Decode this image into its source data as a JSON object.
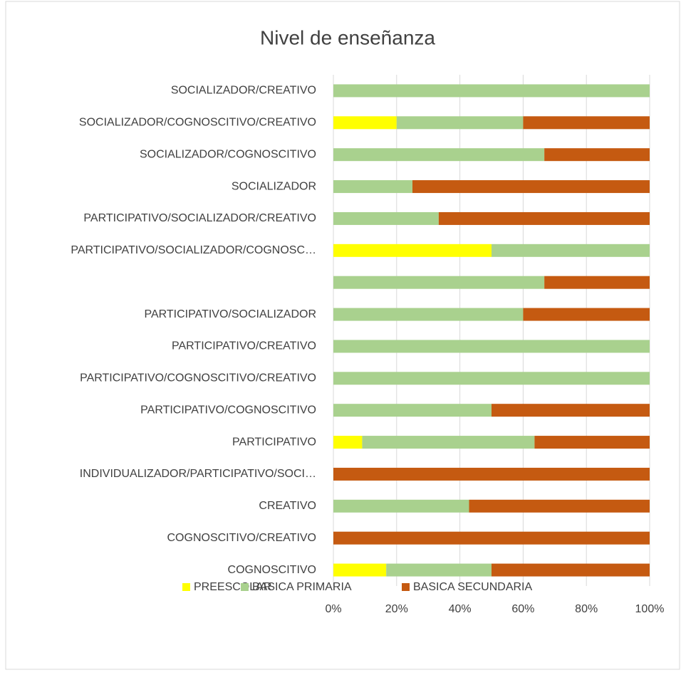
{
  "chart_data": {
    "type": "stacked_bar_horizontal",
    "title": "Nivel de enseñanza",
    "categories": [
      "SOCIALIZADOR/CREATIVO",
      "SOCIALIZADOR/COGNOSCITIVO/CREATIVO",
      "SOCIALIZADOR/COGNOSCITIVO",
      "SOCIALIZADOR",
      "PARTICIPATIVO/SOCIALIZADOR/CREATIVO",
      "PARTICIPATIVO/SOCIALIZADOR/COGNOSC…",
      null,
      "PARTICIPATIVO/SOCIALIZADOR",
      "PARTICIPATIVO/CREATIVO",
      "PARTICIPATIVO/COGNOSCITIVO/CREATIVO",
      "PARTICIPATIVO/COGNOSCITIVO",
      "PARTICIPATIVO",
      "INDIVIDUALIZADOR/PARTICIPATIVO/SOCI…",
      "CREATIVO",
      "COGNOSCITIVO/CREATIVO",
      "COGNOSCITIVO"
    ],
    "series": [
      {
        "name": "PREESCOLAR",
        "color": "#ffff00",
        "values": [
          0,
          20,
          0,
          0,
          0,
          50,
          0,
          0,
          0,
          0,
          0,
          9.1,
          0,
          0,
          0,
          16.7
        ]
      },
      {
        "name": "BASICA PRIMARIA",
        "color": "#a9d18e",
        "values": [
          100,
          40,
          66.7,
          25,
          33.3,
          50,
          66.7,
          60,
          100,
          100,
          50,
          54.5,
          0,
          42.9,
          0,
          33.3
        ]
      },
      {
        "name": "BASICA SECUNDARIA",
        "color": "#c55a11",
        "values": [
          0,
          40,
          33.3,
          75,
          66.7,
          0,
          33.3,
          40,
          0,
          0,
          50,
          36.4,
          100,
          57.1,
          100,
          50
        ]
      }
    ],
    "xlim": [
      0,
      100
    ],
    "xticks": [
      {
        "value": 0,
        "label": "0%"
      },
      {
        "value": 20,
        "label": "20%"
      },
      {
        "value": 40,
        "label": "40%"
      },
      {
        "value": 60,
        "label": "60%"
      },
      {
        "value": 80,
        "label": "80%"
      },
      {
        "value": 100,
        "label": "100%"
      }
    ],
    "grid": true,
    "legend": "bottom"
  }
}
